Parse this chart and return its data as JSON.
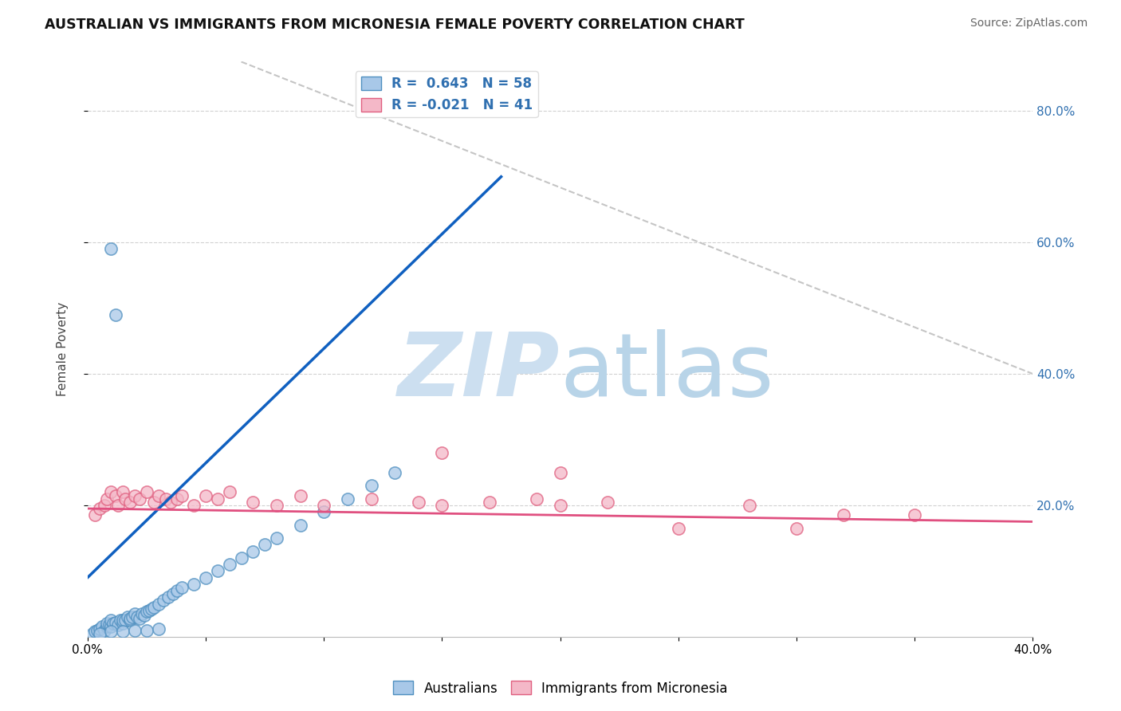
{
  "title": "AUSTRALIAN VS IMMIGRANTS FROM MICRONESIA FEMALE POVERTY CORRELATION CHART",
  "source": "Source: ZipAtlas.com",
  "ylabel": "Female Poverty",
  "xlim": [
    0.0,
    0.4
  ],
  "ylim": [
    0.0,
    0.875
  ],
  "x_ticks": [
    0.0,
    0.05,
    0.1,
    0.15,
    0.2,
    0.25,
    0.3,
    0.35,
    0.4
  ],
  "x_tick_labels": [
    "0.0%",
    "",
    "",
    "",
    "",
    "",
    "",
    "",
    "40.0%"
  ],
  "y_ticks_right": [
    0.2,
    0.4,
    0.6,
    0.8
  ],
  "y_tick_labels_right": [
    "20.0%",
    "40.0%",
    "60.0%",
    "80.0%"
  ],
  "blue_R": 0.643,
  "blue_N": 58,
  "pink_R": -0.021,
  "pink_N": 41,
  "blue_color": "#a8c8e8",
  "pink_color": "#f4b8c8",
  "blue_edge_color": "#5090c0",
  "pink_edge_color": "#e06080",
  "blue_line_color": "#1060c0",
  "pink_line_color": "#e05080",
  "diag_line_color": "#bbbbbb",
  "background_color": "#ffffff",
  "grid_color": "#cccccc",
  "watermark_zip_color": "#ccdff0",
  "watermark_atlas_color": "#b8d4e8",
  "aus_x": [
    0.002,
    0.003,
    0.004,
    0.005,
    0.006,
    0.007,
    0.008,
    0.008,
    0.009,
    0.01,
    0.01,
    0.011,
    0.012,
    0.013,
    0.014,
    0.015,
    0.015,
    0.016,
    0.017,
    0.018,
    0.018,
    0.019,
    0.02,
    0.021,
    0.022,
    0.023,
    0.024,
    0.025,
    0.026,
    0.027,
    0.028,
    0.03,
    0.032,
    0.034,
    0.036,
    0.038,
    0.04,
    0.045,
    0.05,
    0.055,
    0.06,
    0.065,
    0.07,
    0.075,
    0.08,
    0.09,
    0.1,
    0.11,
    0.12,
    0.13,
    0.005,
    0.01,
    0.015,
    0.02,
    0.025,
    0.03,
    0.01,
    0.012
  ],
  "aus_y": [
    0.005,
    0.008,
    0.01,
    0.012,
    0.015,
    0.01,
    0.015,
    0.02,
    0.018,
    0.015,
    0.025,
    0.02,
    0.022,
    0.018,
    0.025,
    0.02,
    0.025,
    0.025,
    0.03,
    0.025,
    0.028,
    0.03,
    0.035,
    0.03,
    0.028,
    0.035,
    0.032,
    0.038,
    0.04,
    0.042,
    0.045,
    0.05,
    0.055,
    0.06,
    0.065,
    0.07,
    0.075,
    0.08,
    0.09,
    0.1,
    0.11,
    0.12,
    0.13,
    0.14,
    0.15,
    0.17,
    0.19,
    0.21,
    0.23,
    0.25,
    0.005,
    0.008,
    0.008,
    0.01,
    0.01,
    0.012,
    0.59,
    0.49
  ],
  "mic_x": [
    0.003,
    0.005,
    0.007,
    0.008,
    0.01,
    0.012,
    0.013,
    0.015,
    0.016,
    0.018,
    0.02,
    0.022,
    0.025,
    0.028,
    0.03,
    0.033,
    0.035,
    0.038,
    0.04,
    0.045,
    0.05,
    0.055,
    0.06,
    0.07,
    0.08,
    0.09,
    0.1,
    0.12,
    0.14,
    0.15,
    0.17,
    0.19,
    0.2,
    0.22,
    0.25,
    0.28,
    0.3,
    0.32,
    0.35,
    0.2,
    0.15
  ],
  "mic_y": [
    0.185,
    0.195,
    0.2,
    0.21,
    0.22,
    0.215,
    0.2,
    0.22,
    0.21,
    0.205,
    0.215,
    0.21,
    0.22,
    0.205,
    0.215,
    0.21,
    0.205,
    0.21,
    0.215,
    0.2,
    0.215,
    0.21,
    0.22,
    0.205,
    0.2,
    0.215,
    0.2,
    0.21,
    0.205,
    0.2,
    0.205,
    0.21,
    0.2,
    0.205,
    0.165,
    0.2,
    0.165,
    0.185,
    0.185,
    0.25,
    0.28
  ],
  "blue_line_x": [
    0.0,
    0.175
  ],
  "blue_line_y": [
    0.09,
    0.7
  ],
  "pink_line_x": [
    0.0,
    0.4
  ],
  "pink_line_y": [
    0.195,
    0.175
  ],
  "diag_line_x": [
    0.065,
    0.4
  ],
  "diag_line_y": [
    0.875,
    0.4
  ]
}
